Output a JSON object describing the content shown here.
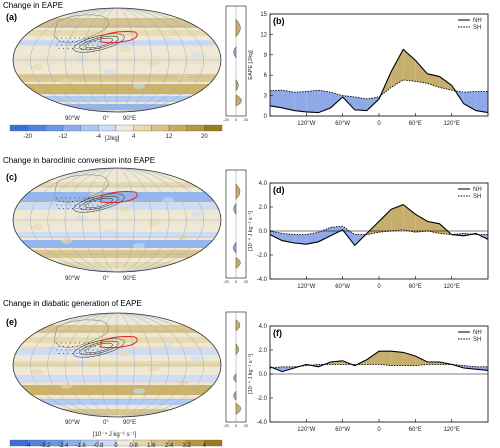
{
  "section_titles": [
    "Change in EAPE",
    "Change in baroclinic conversion into EAPE",
    "Change in diabatic generation of EAPE"
  ],
  "panel_labels": [
    "(a)",
    "(b)",
    "(c)",
    "(d)",
    "(e)",
    "(f)"
  ],
  "map_lon_labels": [
    "90°W",
    "0°",
    "90°E"
  ],
  "colorbars": [
    {
      "unit": "[J/kg]",
      "tick_labels": [
        "-20",
        "-12",
        "-4",
        "4",
        "12",
        "20"
      ],
      "colors": [
        "#3b6fd9",
        "#4f82e0",
        "#6a98e8",
        "#8ab0ef",
        "#aac8f4",
        "#cadcf8",
        "#f2ead8",
        "#e6d8aa",
        "#d8c284",
        "#c9ad5e",
        "#b5973c",
        "#9a7d1c"
      ]
    },
    {
      "unit": "[10⁻⁴ J kg⁻¹ s⁻¹]",
      "tick_labels": [
        "-4",
        "-3.2",
        "-2.4",
        "-1.6",
        "-0.8",
        "0",
        "0.8",
        "1.6",
        "2.4",
        "3.2",
        "4"
      ],
      "colors": [
        "#3b6fd9",
        "#4f82e0",
        "#6a98e8",
        "#8ab0ef",
        "#aac8f4",
        "#cadcf8",
        "#f2ead8",
        "#e6d8aa",
        "#d8c284",
        "#c9ad5e",
        "#b5973c",
        "#9a7d1c"
      ]
    }
  ],
  "zonal_tick_labels": [
    "-20",
    "0",
    "20"
  ],
  "colors": {
    "nh_gt_sh": "#c6ae6f",
    "sh_gt_nh": "#8fa8e8",
    "land": "#bbbbbb",
    "map_bg": "#efe8d4"
  },
  "chart_data": [
    {
      "type": "line",
      "panel": "(b)",
      "ylabel": "EAPE [J/kg]",
      "ylim": [
        0,
        15
      ],
      "yticks": [
        "0",
        "3",
        "6",
        "9",
        "12",
        "15"
      ],
      "xlim": [
        -180,
        180
      ],
      "xticks": [
        -120,
        -60,
        0,
        60,
        120
      ],
      "xtick_labels": [
        "120°W",
        "60°W",
        "0",
        "60°E",
        "120°E"
      ],
      "legend": [
        "NH",
        "SH"
      ],
      "legend_position": "top-right",
      "x": [
        -180,
        -160,
        -140,
        -120,
        -100,
        -80,
        -60,
        -40,
        -20,
        0,
        20,
        40,
        60,
        80,
        100,
        120,
        140,
        160,
        180
      ],
      "series": [
        {
          "name": "NH",
          "values": [
            1.5,
            1.2,
            0.8,
            0.6,
            0.5,
            1.2,
            2.8,
            0.9,
            0.8,
            2.5,
            6.5,
            9.8,
            8.2,
            6.2,
            5.8,
            4.5,
            1.8,
            0.8,
            0.5
          ]
        },
        {
          "name": "SH",
          "values": [
            3.7,
            3.8,
            3.5,
            3.6,
            3.8,
            3.5,
            3.0,
            2.8,
            2.5,
            2.8,
            4.2,
            5.3,
            5.1,
            4.8,
            4.2,
            3.8,
            3.5,
            3.6,
            3.6
          ]
        }
      ]
    },
    {
      "type": "line",
      "panel": "(d)",
      "ylabel": "[10⁻⁴ J kg⁻¹ s⁻¹]",
      "ylim": [
        -4,
        4
      ],
      "yticks": [
        "-4.0",
        "-2.0",
        "0.0",
        "2.0",
        "4.0"
      ],
      "xlim": [
        -180,
        180
      ],
      "xticks": [
        -120,
        -60,
        0,
        60,
        120
      ],
      "xtick_labels": [
        "120°W",
        "60°W",
        "0",
        "60°E",
        "120°E"
      ],
      "legend": [
        "NH",
        "SH"
      ],
      "legend_position": "top-right",
      "x": [
        -180,
        -160,
        -140,
        -120,
        -100,
        -80,
        -60,
        -40,
        -20,
        0,
        20,
        40,
        60,
        80,
        100,
        120,
        140,
        160,
        180
      ],
      "series": [
        {
          "name": "NH",
          "values": [
            -0.3,
            -0.8,
            -1.0,
            -1.1,
            -0.9,
            -0.4,
            0.1,
            -1.2,
            -0.2,
            0.8,
            1.8,
            2.2,
            1.4,
            0.8,
            0.6,
            -0.3,
            -0.4,
            -0.2,
            -0.7
          ]
        },
        {
          "name": "SH",
          "values": [
            0.0,
            -0.2,
            -0.3,
            -0.3,
            -0.1,
            0.3,
            0.4,
            -0.3,
            -0.3,
            -0.1,
            0.0,
            0.1,
            -0.1,
            0.0,
            -0.2,
            -0.3,
            -0.2,
            -0.3,
            -0.3
          ]
        }
      ]
    },
    {
      "type": "line",
      "panel": "(f)",
      "ylabel": "[10⁻⁴ J kg⁻¹ s⁻¹]",
      "ylim": [
        -4,
        4
      ],
      "yticks": [
        "-4.0",
        "-2.0",
        "0.0",
        "2.0",
        "4.0"
      ],
      "xlim": [
        -180,
        180
      ],
      "xticks": [
        -120,
        -60,
        0,
        60,
        120
      ],
      "xtick_labels": [
        "120°W",
        "60°W",
        "0",
        "60°E",
        "120°E"
      ],
      "legend": [
        "NH",
        "SH"
      ],
      "legend_position": "top-right",
      "x": [
        -180,
        -160,
        -140,
        -120,
        -100,
        -80,
        -60,
        -40,
        -20,
        0,
        20,
        40,
        60,
        80,
        100,
        120,
        140,
        160,
        180
      ],
      "series": [
        {
          "name": "NH",
          "values": [
            0.6,
            0.2,
            0.5,
            0.8,
            0.6,
            1.0,
            1.1,
            0.7,
            1.2,
            1.9,
            1.9,
            1.8,
            1.5,
            1.0,
            1.0,
            0.8,
            0.5,
            0.4,
            0.3
          ]
        },
        {
          "name": "SH",
          "values": [
            0.5,
            0.6,
            0.6,
            0.7,
            0.8,
            0.8,
            0.8,
            0.8,
            0.8,
            0.8,
            0.7,
            0.7,
            0.7,
            0.8,
            0.8,
            0.8,
            0.7,
            0.6,
            0.6
          ]
        }
      ]
    }
  ]
}
